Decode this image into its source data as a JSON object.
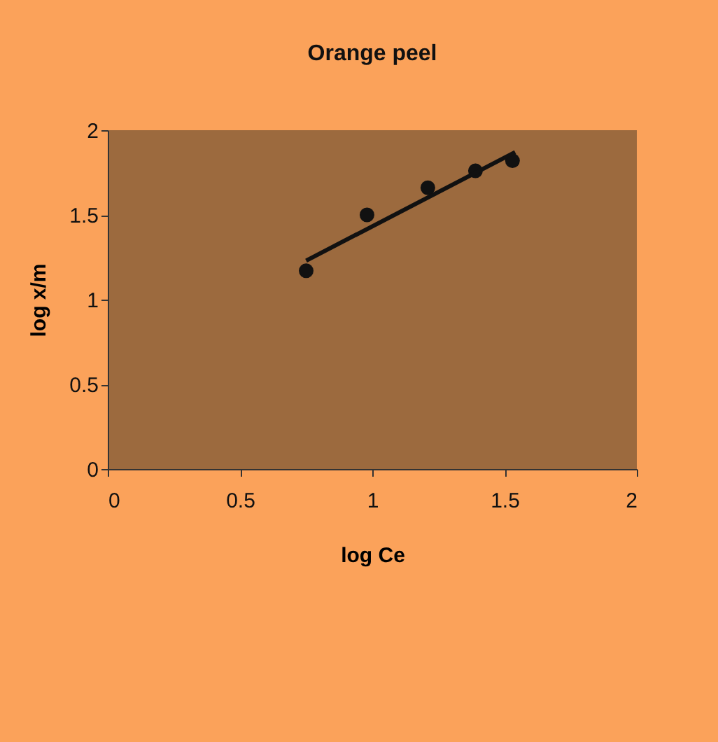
{
  "chart_data": {
    "type": "scatter",
    "title": "Orange peel",
    "xlabel": "log Ce",
    "ylabel": "log x/m",
    "xlim": [
      0,
      2
    ],
    "xticks": [
      0,
      0.5,
      1,
      1.5,
      2
    ],
    "ylim": [
      0,
      2
    ],
    "yticks": [
      0,
      0.5,
      1,
      1.5,
      2
    ],
    "grid": false,
    "marker": "circle",
    "x": [
      0.75,
      0.98,
      1.21,
      1.39,
      1.53
    ],
    "series": [
      {
        "color": "#111111",
        "values": [
          1.17,
          1.5,
          1.66,
          1.76,
          1.82
        ]
      },
      {
        "type": "line",
        "color": "#111111",
        "x": [
          0.75,
          1.54
        ],
        "values": [
          1.23,
          1.87
        ],
        "line_style": "solid",
        "marker": "none"
      }
    ]
  }
}
